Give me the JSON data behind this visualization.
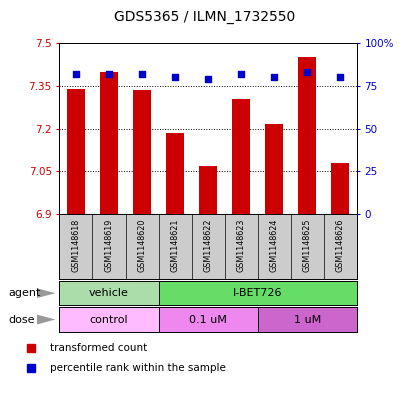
{
  "title": "GDS5365 / ILMN_1732550",
  "samples": [
    "GSM1148618",
    "GSM1148619",
    "GSM1148620",
    "GSM1148621",
    "GSM1148622",
    "GSM1148623",
    "GSM1148624",
    "GSM1148625",
    "GSM1148626"
  ],
  "bar_values": [
    7.34,
    7.4,
    7.335,
    7.185,
    7.07,
    7.305,
    7.215,
    7.45,
    7.08
  ],
  "percentile_values": [
    82,
    82,
    82,
    80,
    79,
    82,
    80,
    83,
    80
  ],
  "bar_bottom": 6.9,
  "ylim_left": [
    6.9,
    7.5
  ],
  "ylim_right": [
    0,
    100
  ],
  "yticks_left": [
    6.9,
    7.05,
    7.2,
    7.35,
    7.5
  ],
  "yticks_right": [
    0,
    25,
    50,
    75,
    100
  ],
  "ytick_labels_left": [
    "6.9",
    "7.05",
    "7.2",
    "7.35",
    "7.5"
  ],
  "ytick_labels_right": [
    "0",
    "25",
    "50",
    "75",
    "100%"
  ],
  "bar_color": "#cc0000",
  "percentile_color": "#0000cc",
  "agent_groups": [
    {
      "label": "vehicle",
      "start": 0,
      "end": 3,
      "color": "#aaddaa"
    },
    {
      "label": "I-BET726",
      "start": 3,
      "end": 9,
      "color": "#66dd66"
    }
  ],
  "dose_groups": [
    {
      "label": "control",
      "start": 0,
      "end": 3,
      "color": "#ffbbff"
    },
    {
      "label": "0.1 uM",
      "start": 3,
      "end": 6,
      "color": "#ee88ee"
    },
    {
      "label": "1 uM",
      "start": 6,
      "end": 9,
      "color": "#cc66cc"
    }
  ],
  "legend_items": [
    {
      "label": "transformed count",
      "color": "#cc0000"
    },
    {
      "label": "percentile rank within the sample",
      "color": "#0000cc"
    }
  ],
  "bg_color": "#ffffff",
  "tick_area_bg": "#cccccc",
  "row_label_agent": "agent",
  "row_label_dose": "dose"
}
